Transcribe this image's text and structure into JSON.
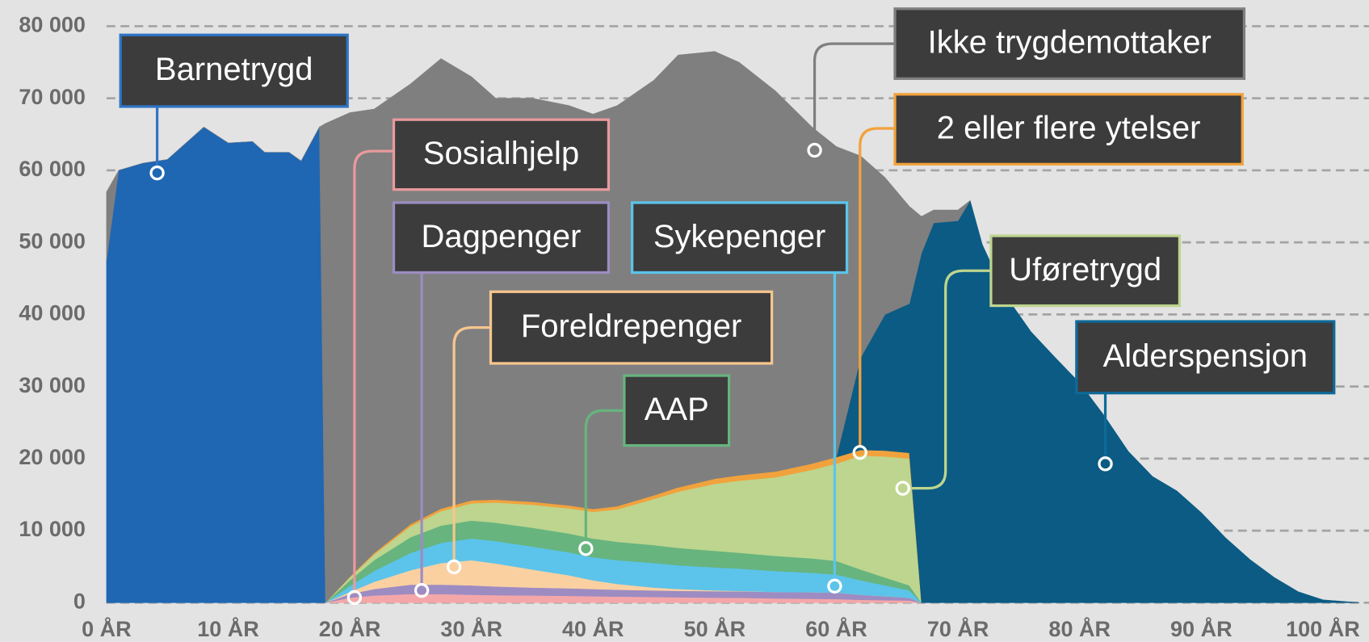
{
  "chart_data": {
    "type": "area",
    "stacked": true,
    "grid": true,
    "xlim": [
      0,
      103
    ],
    "ylim": [
      0,
      80000
    ],
    "xticks": [
      {
        "value": 0,
        "label": "0 ÅR"
      },
      {
        "value": 10,
        "label": "10 ÅR"
      },
      {
        "value": 20,
        "label": "20 ÅR"
      },
      {
        "value": 30,
        "label": "30 ÅR"
      },
      {
        "value": 40,
        "label": "40 ÅR"
      },
      {
        "value": 50,
        "label": "50 ÅR"
      },
      {
        "value": 60,
        "label": "60 ÅR"
      },
      {
        "value": 70,
        "label": "70 ÅR"
      },
      {
        "value": 80,
        "label": "80 ÅR"
      },
      {
        "value": 90,
        "label": "90 ÅR"
      },
      {
        "value": 100,
        "label": "100 ÅR"
      }
    ],
    "yticks": [
      0,
      {
        "value": 10000,
        "label": "10 000"
      },
      {
        "value": 20000,
        "label": "20 000"
      },
      {
        "value": 30000,
        "label": "30 000"
      },
      {
        "value": 40000,
        "label": "40 000"
      },
      {
        "value": 50000,
        "label": "50 000"
      },
      {
        "value": 60000,
        "label": "60 000"
      },
      {
        "value": 70000,
        "label": "70 000"
      },
      {
        "value": 80000,
        "label": "80 000"
      }
    ],
    "x": [
      0,
      1,
      3,
      5,
      6,
      8,
      10,
      12,
      13,
      15,
      16,
      17.5,
      18,
      20,
      22,
      25,
      27.5,
      30,
      32,
      35,
      38,
      40,
      42,
      45,
      47,
      50,
      52,
      55,
      58,
      60,
      62,
      64,
      66,
      67,
      68,
      70,
      71,
      72,
      74,
      76,
      78,
      80,
      82,
      84,
      86,
      88,
      90,
      92,
      94,
      96,
      98,
      100,
      103
    ],
    "series": [
      {
        "name": "Barnetrygd",
        "color": "#1f66b3",
        "border": "#2f74c6",
        "values": [
          47500,
          60000,
          61000,
          61500,
          63000,
          66000,
          63800,
          64000,
          62500,
          62500,
          61300,
          66000,
          0,
          null,
          null,
          null,
          null,
          null,
          null,
          null,
          null,
          null,
          null,
          null,
          null,
          null,
          null,
          null,
          null,
          null,
          null,
          null,
          null,
          null,
          null,
          null,
          null,
          null,
          null,
          null,
          null,
          null,
          null,
          null,
          null,
          null,
          null,
          null,
          null,
          null,
          null,
          null,
          null
        ]
      },
      {
        "name": "Sosialhjelp",
        "color": "#f4a7a9",
        "border": "#e99a9d",
        "values": [
          null,
          null,
          null,
          null,
          null,
          null,
          null,
          null,
          null,
          null,
          null,
          null,
          0,
          700,
          1000,
          1200,
          1200,
          1100,
          1050,
          1000,
          950,
          900,
          850,
          800,
          750,
          700,
          680,
          600,
          550,
          500,
          400,
          350,
          300,
          0,
          null,
          null,
          null,
          null,
          null,
          null,
          null,
          null,
          null,
          null,
          null,
          null,
          null,
          null,
          null,
          null,
          null,
          null,
          null
        ]
      },
      {
        "name": "Dagpenger",
        "color": "#9d8cc2",
        "border": "#9d8cc2",
        "values": [
          null,
          null,
          null,
          null,
          null,
          null,
          null,
          null,
          null,
          null,
          null,
          null,
          0,
          500,
          900,
          1300,
          1300,
          1300,
          1200,
          1100,
          1050,
          1000,
          950,
          900,
          900,
          900,
          900,
          900,
          900,
          900,
          700,
          550,
          400,
          0,
          null,
          null,
          null,
          null,
          null,
          null,
          null,
          null,
          null,
          null,
          null,
          null,
          null,
          null,
          null,
          null,
          null,
          null,
          null
        ]
      },
      {
        "name": "Foreldrepenger",
        "color": "#fbd0a1",
        "border": "#f6c68e",
        "values": [
          null,
          null,
          null,
          null,
          null,
          null,
          null,
          null,
          null,
          null,
          null,
          null,
          0,
          300,
          1000,
          2000,
          3000,
          3500,
          3200,
          2500,
          1800,
          1200,
          800,
          400,
          250,
          100,
          50,
          0,
          0,
          0,
          0,
          0,
          0,
          0,
          null,
          null,
          null,
          null,
          null,
          null,
          null,
          null,
          null,
          null,
          null,
          null,
          null,
          null,
          null,
          null,
          null,
          null,
          null
        ]
      },
      {
        "name": "Sykepenger",
        "color": "#5cc4ea",
        "border": "#5cc4ea",
        "values": [
          null,
          null,
          null,
          null,
          null,
          null,
          null,
          null,
          null,
          null,
          null,
          null,
          0,
          800,
          1500,
          2400,
          2800,
          3000,
          3100,
          3200,
          3200,
          3200,
          3300,
          3400,
          3300,
          3200,
          3100,
          2900,
          2700,
          2500,
          2000,
          1500,
          1000,
          0,
          null,
          null,
          null,
          null,
          null,
          null,
          null,
          null,
          null,
          null,
          null,
          null,
          null,
          null,
          null,
          null,
          null,
          null,
          null
        ]
      },
      {
        "name": "AAP",
        "color": "#67b47e",
        "border": "#67b47e",
        "values": [
          null,
          null,
          null,
          null,
          null,
          null,
          null,
          null,
          null,
          null,
          null,
          null,
          0,
          800,
          1500,
          2200,
          2400,
          2500,
          2550,
          2600,
          2600,
          2600,
          2550,
          2500,
          2400,
          2300,
          2200,
          2100,
          2000,
          1900,
          1500,
          1100,
          700,
          0,
          null,
          null,
          null,
          null,
          null,
          null,
          null,
          null,
          null,
          null,
          null,
          null,
          null,
          null,
          null,
          null,
          null,
          null,
          null
        ]
      },
      {
        "name": "Uføretrygd",
        "color": "#bdd58e",
        "border": "#bdd58e",
        "values": [
          null,
          null,
          null,
          null,
          null,
          null,
          null,
          null,
          null,
          null,
          null,
          null,
          0,
          400,
          800,
          1500,
          2000,
          2400,
          2800,
          3200,
          3500,
          3700,
          4500,
          6400,
          7800,
          9300,
          10000,
          10900,
          12300,
          13500,
          15800,
          16800,
          17600,
          0,
          null,
          null,
          null,
          null,
          null,
          null,
          null,
          null,
          null,
          null,
          null,
          null,
          null,
          null,
          null,
          null,
          null,
          null,
          null
        ]
      },
      {
        "name": "2 eller flere ytelser",
        "color": "#f2a23c",
        "border": "#f2a23c",
        "values": [
          null,
          null,
          null,
          null,
          null,
          null,
          null,
          null,
          null,
          null,
          null,
          null,
          0,
          100,
          200,
          300,
          350,
          400,
          400,
          400,
          400,
          400,
          450,
          500,
          600,
          700,
          750,
          800,
          850,
          900,
          800,
          800,
          800,
          0,
          null,
          null,
          null,
          null,
          null,
          null,
          null,
          null,
          null,
          null,
          null,
          null,
          null,
          null,
          null,
          null,
          null,
          null,
          null
        ]
      },
      {
        "name": "Alderspensjon",
        "color": "#0b5b84",
        "border": "#0f6a99",
        "values": [
          null,
          null,
          null,
          null,
          null,
          null,
          null,
          null,
          null,
          null,
          null,
          null,
          null,
          null,
          null,
          null,
          null,
          null,
          null,
          null,
          null,
          null,
          null,
          null,
          null,
          null,
          null,
          null,
          null,
          0,
          12800,
          18900,
          20700,
          48500,
          52700,
          53000,
          55800,
          49700,
          42400,
          37600,
          34000,
          30500,
          26000,
          21000,
          17500,
          15500,
          12500,
          9000,
          6000,
          3500,
          1500,
          400,
          0
        ]
      },
      {
        "name": "Ikke trygdemottaker",
        "color": "#7f7f7f",
        "border": "#7f7f7f",
        "values": [
          9500,
          0,
          0,
          0,
          0,
          0,
          0,
          0,
          0,
          0,
          0,
          0,
          66500,
          64400,
          61600,
          61100,
          62450,
          58800,
          55700,
          56000,
          55500,
          54800,
          55600,
          57600,
          60000,
          59300,
          57320,
          52800,
          46700,
          43100,
          28000,
          19000,
          13500,
          5100,
          1800,
          1500,
          0,
          null,
          null,
          null,
          null,
          null,
          null,
          null,
          null,
          null,
          null,
          null,
          null,
          null,
          null,
          null,
          null
        ]
      }
    ]
  }
}
